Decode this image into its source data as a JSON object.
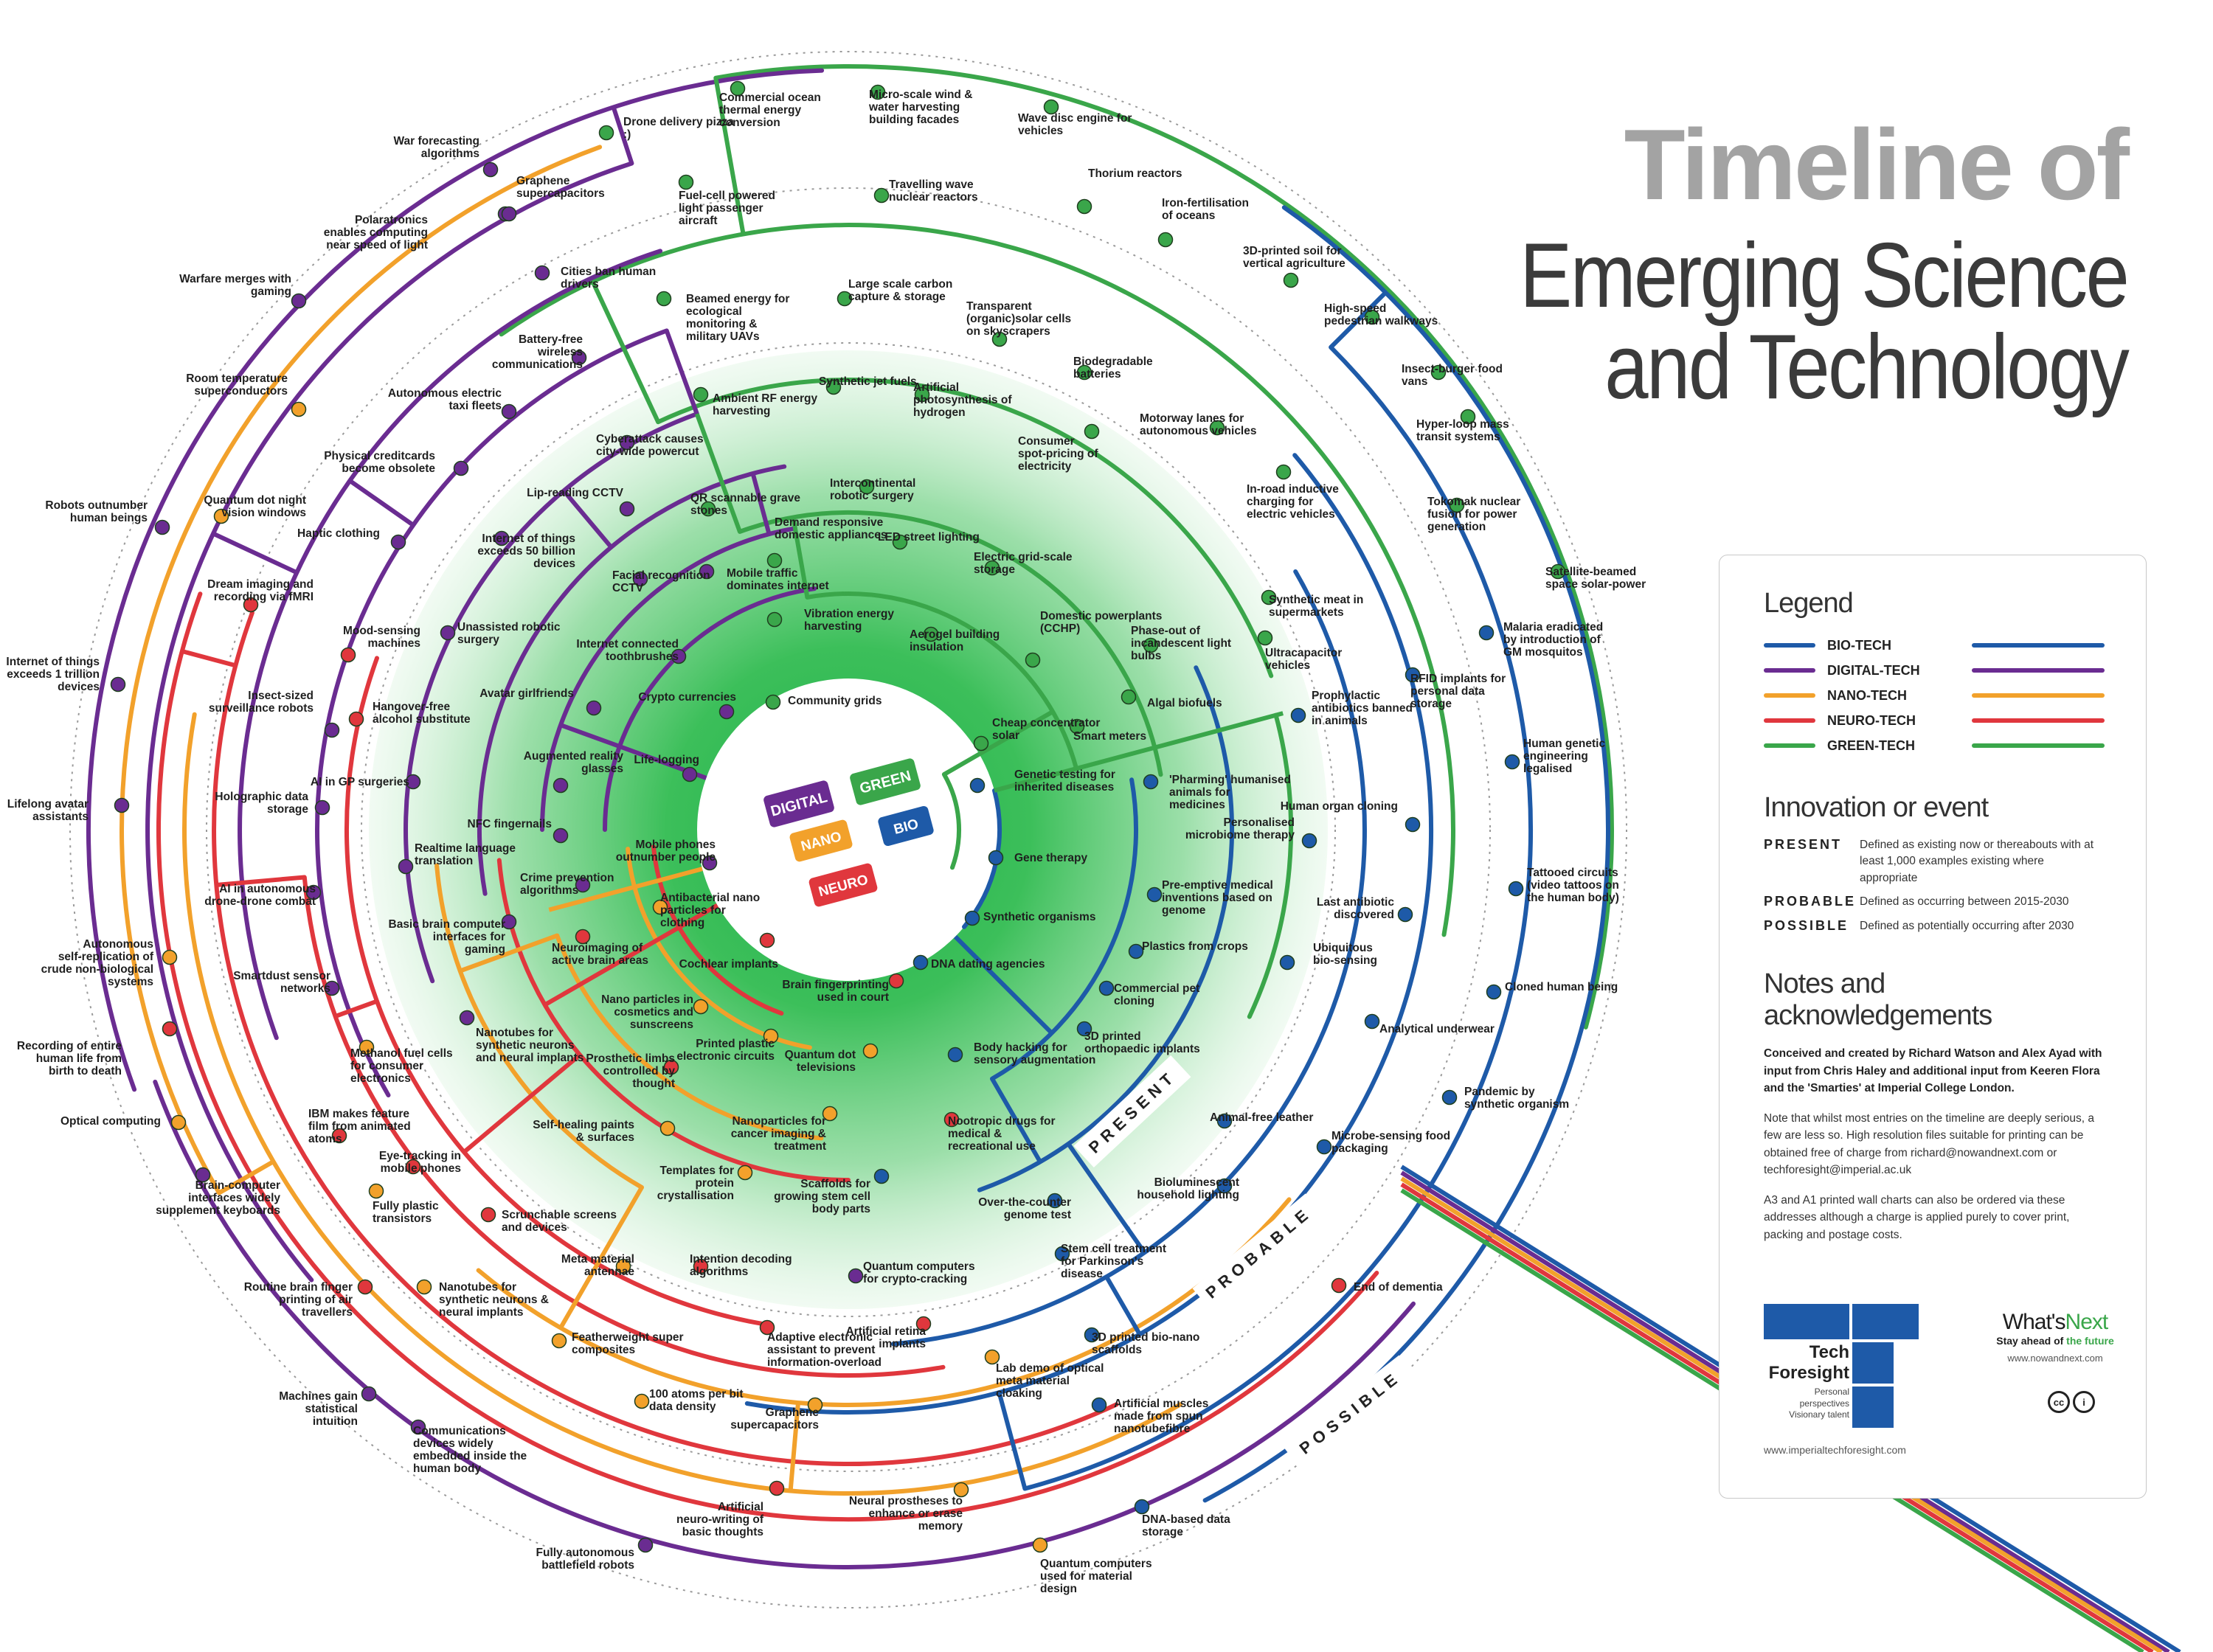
{
  "title": {
    "line1": "Timeline of",
    "line2": "Emerging Science",
    "line3": "and Technology"
  },
  "colors": {
    "bio": "#1e5aa8",
    "digital": "#6a2c91",
    "nano": "#f2a12b",
    "neuro": "#e0373d",
    "green": "#3aa64a"
  },
  "zones": {
    "present": "PRESENT",
    "probable": "PROBABLE",
    "possible": "POSSIBLE"
  },
  "center_tags": {
    "digital": "DIGITAL",
    "green": "GREEN",
    "nano": "NANO",
    "bio": "BIO",
    "neuro": "NEURO"
  },
  "legend": {
    "heading": "Legend",
    "items": [
      {
        "label": "BIO-TECH",
        "color": "#1e5aa8"
      },
      {
        "label": "DIGITAL-TECH",
        "color": "#6a2c91"
      },
      {
        "label": "NANO-TECH",
        "color": "#f2a12b"
      },
      {
        "label": "NEURO-TECH",
        "color": "#e0373d"
      },
      {
        "label": "GREEN-TECH",
        "color": "#3aa64a"
      }
    ]
  },
  "innovation": {
    "heading": "Innovation or event",
    "present": {
      "key": "PRESENT",
      "text": "Defined as existing now or thereabouts with at least 1,000 examples existing where appropriate"
    },
    "probable": {
      "key": "PROBABLE",
      "text": "Defined as occurring between 2015-2030"
    },
    "possible": {
      "key": "POSSIBLE",
      "text": "Defined as potentially occurring after 2030"
    }
  },
  "notes": {
    "heading": "Notes and acknowledgements",
    "p1": "Conceived and created by Richard Watson and Alex Ayad with input from Chris Haley and additional input from Keeren Flora and the 'Smarties' at Imperial College London.",
    "p2": "Note that whilst most entries on the timeline are deeply serious, a few are less so. High resolution files suitable for printing can be obtained free of charge from richard@nowandnext.com or techforesight@imperial.ac.uk",
    "p3": "A3 and A1 printed wall charts can also be ordered via these addresses although a charge is applied purely to cover print, packing and postage costs."
  },
  "logos": {
    "tf_name": "Tech Foresight",
    "tf_tag": "Personal perspectives Visionary talent",
    "tf_url": "www.imperialtechforesight.com",
    "wn_prefix": "What's",
    "wn_brand": "Next",
    "wn_tag_prefix": "Stay ahead of ",
    "wn_tag_brand": "the future",
    "wn_url": "www.nowandnext.com",
    "cc": "cc",
    "by": "i"
  },
  "labels": {
    "drone_pizza": "Drone delivery pizza :)",
    "ocean_thermal": "Commercial ocean thermal energy conversion",
    "micro_wind": "Micro-scale wind & water harvesting building facades",
    "wave_disc": "Wave disc engine for vehicles",
    "war_forecasting": "War forecasting algorithms",
    "graphene_supercap_outer": "Graphene supercapacitors",
    "fuel_cell_aircraft": "Fuel-cell powered light passenger aircraft",
    "travelling_wave": "Travelling wave nuclear reactors",
    "thorium": "Thorium reactors",
    "iron_fert": "Iron-fertilisation of oceans",
    "polaratronics": "Polaratronics enables computing near speed of light",
    "cities_ban": "Cities ban human drivers",
    "printed_soil": "3D-printed soil for vertical agriculture",
    "warfare_gaming": "Warfare merges with gaming",
    "beamed_energy": "Beamed energy for ecological monitoring & military UAVs",
    "carbon_capture": "Large scale carbon capture & storage",
    "transparent_solar": "Transparent (organic)solar cells on skyscrapers",
    "highspeed_walkways": "High-speed pedestrian walkways",
    "battery_free": "Battery-free wireless communications",
    "biodegradable": "Biodegradable batteries",
    "insect_burger": "Insect-burger food vans",
    "room_temp_sc": "Room temperature superconductors",
    "autonomous_taxi": "Autonomous electric taxi fleets",
    "ambient_rf": "Ambient RF energy harvesting",
    "synthetic_jet": "Synthetic jet fuels",
    "artificial_photo": "Artificial photosynthesis of hydrogen",
    "motorway_lanes": "Motorway lanes for autonomous vehicles",
    "hyperloop": "Hyper-loop mass transit systems",
    "physical_creditcards": "Physical creditcards become obsolete",
    "cyberattack": "Cyberattack causes city-wide powercut",
    "consumer_spot": "Consumer spot-pricing of electricity",
    "robots_outnumber": "Robots outnumber human beings",
    "quantum_dot_vision": "Quantum dot night vision windows",
    "lip_reading": "Lip-reading CCTV",
    "intercontinental_surgery": "Intercontinental robotic surgery",
    "inroad_charging": "In-road inductive charging for electric vehicles",
    "tokomak": "Tokomak nuclear fusion for power generation",
    "haptic_clothing": "Haptic clothing",
    "iot_50b": "Internet of things exceeds 50 billion devices",
    "qr_grave": "QR scannable grave stones",
    "demand_responsive": "Demand responsive domestic appliances",
    "led_lighting": "LED street lighting",
    "electric_grid": "Electric grid-scale storage",
    "dream_imaging": "Dream imaging and recording via fMRI",
    "satellite_solar": "Satellite-beamed space solar-power",
    "facial_recognition": "Facial recognition CCTV",
    "mobile_traffic": "Mobile traffic dominates internet",
    "vibration_energy": "Vibration energy harvesting",
    "aerogel": "Aerogel building insulation",
    "domestic_powerplants": "Domestic powerplants (CCHP)",
    "phaseout_incandescent": "Phase-out of incandescent light bulbs",
    "synthetic_meat": "Synthetic meat in supermarkets",
    "internet_things_1t": "Internet of things exceeds 1 trillion devices",
    "mood_sensing": "Mood-sensing machines",
    "unassisted_surgery": "Unassisted robotic surgery",
    "internet_toothbrushes": "Internet connected toothbrushes",
    "ultracap_vehicles": "Ultracapacitor vehicles",
    "malaria": "Malaria eradicated by introduction of GM mosquitos",
    "insect_surveillance": "Insect-sized surveillance robots",
    "hangover_free": "Hangover-free alcohol substitute",
    "avatar_girlfriends": "Avatar girlfriends",
    "crypto_currencies": "Crypto currencies",
    "community_grids": "Community grids",
    "algal_biofuels": "Algal biofuels",
    "rfid_implants": "RFID implants for personal data storage",
    "prophylactic": "Prophylactic antibiotics banned in animals",
    "lifelong_avatar": "Lifelong avatar assistants",
    "holographic": "Holographic data storage",
    "augmented_glasses": "Augmented reality glasses",
    "cheap_solar": "Cheap concentrator solar",
    "smart_meters": "Smart meters",
    "human_genetic": "Human genetic engineering legalised",
    "ai_gp": "AI in GP surgeries",
    "life_logging": "Life-logging",
    "genetic_testing": "Genetic testing for inherited diseases",
    "pharming": "'Pharming' humanised animals for medicines",
    "human_organ": "Human organ cloning",
    "nfc": "NFC fingernails",
    "personalised_microbiome": "Personalised microbiome therapy",
    "ai_drone_combat": "AI in autonomous drone-drone combat",
    "realtime_translation": "Realtime language translation",
    "mobile_outnumber": "Mobile phones outnumber people",
    "gene_therapy": "Gene therapy",
    "tattooed_circuits": "Tattooed circuits (video tattoos on the human body)",
    "crime_prevention": "Crime prevention algorithms",
    "antibacterial_nano": "Antibacterial nano particles for clothing",
    "preemptive_medical": "Pre-emptive medical inventions based on genome",
    "last_antibiotic": "Last antibiotic discovered",
    "autonomous_self_rep": "Autonomous self-replication of crude non-biological systems",
    "basic_bci": "Basic brain computer interfaces for gaming",
    "synthetic_organisms": "Synthetic organisms",
    "plastics_crops": "Plastics from crops",
    "ubiquitous_biosensing": "Ubiquitous bio-sensing",
    "smartdust": "Smartdust sensor networks",
    "neuroimaging": "Neuroimaging of active brain areas",
    "cochlear": "Cochlear implants",
    "brain_fingerprinting": "Brain fingerprinting used in court",
    "dna_dating": "DNA dating agencies",
    "cloned_human": "Cloned human being",
    "commercial_pet": "Commercial pet cloning",
    "recording_life": "Recording of entire human life from birth to death",
    "methanol_fuel": "Methanol fuel cells for consumer electronics",
    "nano_cosmetics": "Nano particles in cosmetics and sunscreens",
    "analytical_underwear": "Analytical underwear",
    "nanotubes_neurons_inner": "Nanotubes for synthetic neurons and neural implants",
    "printed_circuits": "Printed plastic electronic circuits",
    "quantum_dot_tv": "Quantum dot televisions",
    "body_hacking": "Body hacking for sensory augmentation",
    "printed_ortho": "3D printed orthopaedic implants",
    "optical_computing": "Optical computing",
    "prosthetic_limbs": "Prosthetic limbs controlled by thought",
    "pandemic": "Pandemic by synthetic organism",
    "ibm_film": "IBM makes feature film from animated atoms",
    "self_healing": "Self-healing paints & surfaces",
    "nanoparticles_cancer": "Nanoparticles for cancer imaging & treatment",
    "nootropic": "Nootropic drugs for medical & recreational use",
    "animal_free_leather": "Animal-free leather",
    "eye_tracking": "Eye-tracking in mobile phones",
    "microbe_sensing": "Microbe-sensing food packaging",
    "brain_computer_keyboards": "Brain-computer interfaces widely supplement keyboards",
    "templates_protein": "Templates for protein crystallisation",
    "scaffolds": "Scaffolds for growing stem cell body parts",
    "bioluminescent": "Bioluminescent household lighting",
    "fully_plastic": "Fully plastic transistors",
    "scrunchable": "Scrunchable screens and devices",
    "over_counter_genome": "Over-the-counter genome test",
    "stem_cell_parkinsons": "Stem cell treatment for Parkinson's disease",
    "meta_material": "Meta material antennae",
    "intention_decoding": "Intention decoding algorithms",
    "quantum_crypto": "Quantum computers for crypto-cracking",
    "routine_brain": "Routine brain finger printing of air travellers",
    "nanotubes_neurons_outer": "Nanotubes for synthetic neurons & neural implants",
    "end_dementia": "End of dementia",
    "featherweight": "Featherweight super composites",
    "adaptive_assistant": "Adaptive electronic assistant to prevent information-overload",
    "artificial_retina": "Artificial retina implants",
    "printed_bionano": "3D printed bio-nano scaffolds",
    "lab_demo_cloaking": "Lab demo of optical meta material cloaking",
    "machines_intuition": "Machines gain statistical intuition",
    "atoms_100": "100 atoms per bit data density",
    "graphene_supercap_inner": "Graphene supercapacitors",
    "artificial_muscles": "Artificial muscles made from spun nanotubefibre",
    "communications_body": "Communications devices widely embedded inside the human body",
    "neuro_writing": "Artificial neuro-writing of basic thoughts",
    "neural_prostheses": "Neural prostheses to enhance or erase memory",
    "dna_storage": "DNA-based data storage",
    "battlefield_robots": "Fully autonomous battlefield robots",
    "quantum_material": "Quantum computers used for material design"
  }
}
